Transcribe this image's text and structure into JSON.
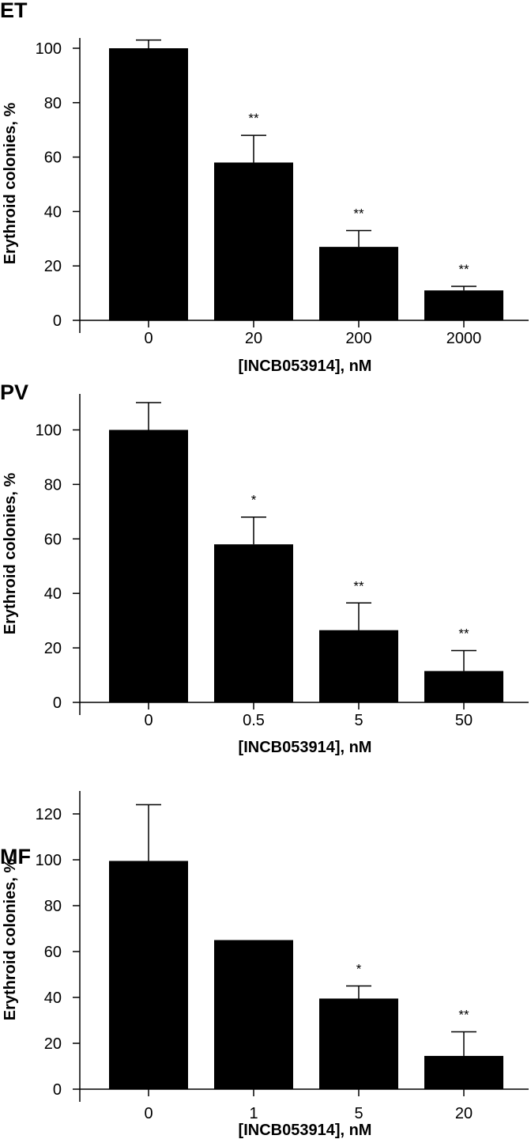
{
  "chart_data": [
    {
      "type": "bar",
      "panel_label": "ET",
      "categories": [
        "0",
        "20",
        "200",
        "2000"
      ],
      "values": [
        100,
        58,
        27,
        11
      ],
      "error_upper": [
        103,
        68,
        33,
        12.5
      ],
      "significance": [
        "",
        "**",
        "**",
        "**"
      ],
      "xlabel": "[INCB053914], nM",
      "ylabel": "Erythroid colonies, %",
      "ylim": [
        0,
        100
      ],
      "yticks": [
        "0",
        "20",
        "40",
        "60",
        "80",
        "100"
      ],
      "bar_color": "#000000"
    },
    {
      "type": "bar",
      "panel_label": "PV",
      "categories": [
        "0",
        "0.5",
        "5",
        "50"
      ],
      "values": [
        100,
        58,
        26.5,
        11.5
      ],
      "error_upper": [
        110,
        68,
        36.5,
        19
      ],
      "significance": [
        "",
        "*",
        "**",
        "**"
      ],
      "xlabel": "[INCB053914], nM",
      "ylabel": "Erythroid colonies, %",
      "ylim": [
        0,
        100
      ],
      "yticks": [
        "0",
        "20",
        "40",
        "60",
        "80",
        "100"
      ],
      "bar_color": "#000000"
    },
    {
      "type": "bar",
      "panel_label": "MF",
      "categories": [
        "0",
        "1",
        "5",
        "20"
      ],
      "values": [
        99.5,
        65,
        39.5,
        14.5
      ],
      "error_upper": [
        124,
        65,
        45,
        25
      ],
      "significance": [
        "",
        "",
        "*",
        "**"
      ],
      "xlabel": "[INCB053914], nM",
      "ylabel": "Erythroid colonies, %",
      "ylim": [
        0,
        120
      ],
      "yticks": [
        "0",
        "20",
        "40",
        "60",
        "80",
        "100",
        "120"
      ],
      "bar_color": "#000000"
    }
  ]
}
